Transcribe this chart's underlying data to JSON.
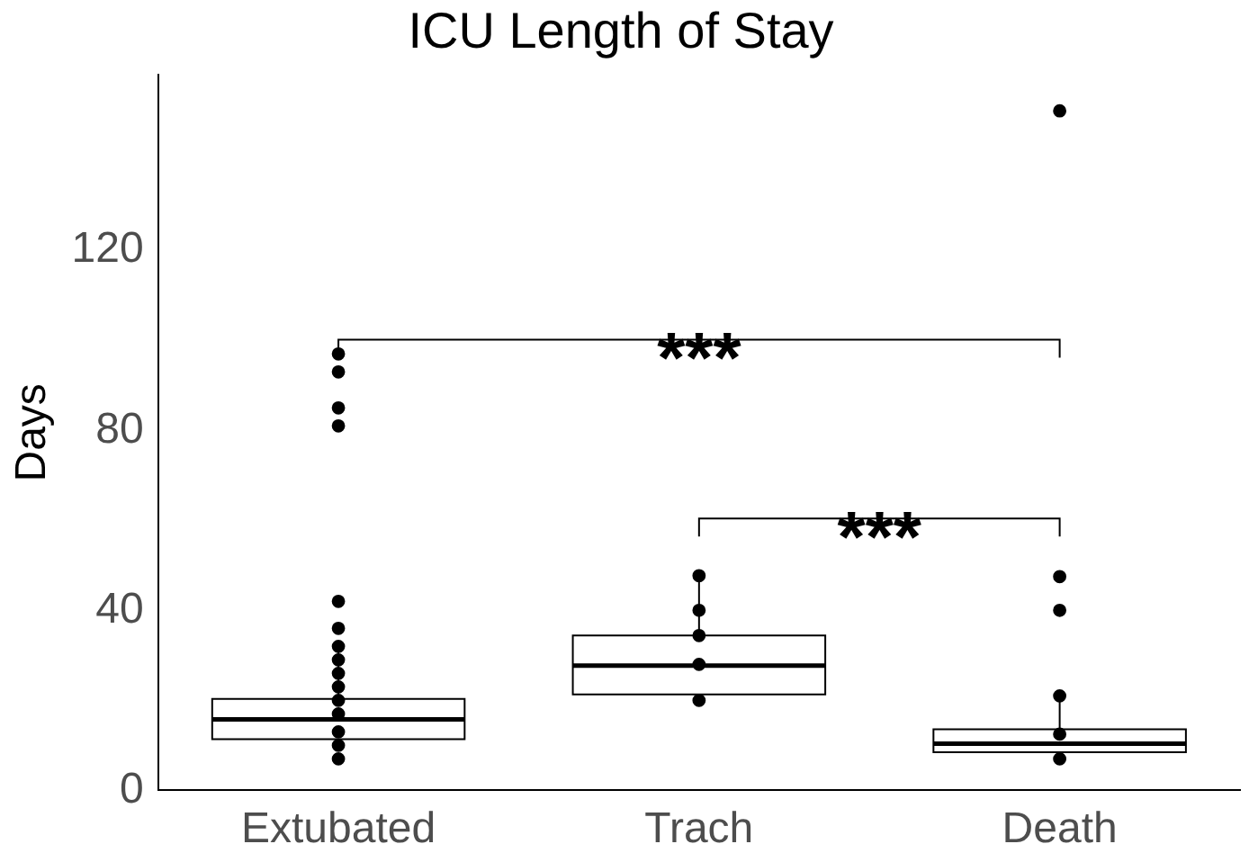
{
  "chart_data": {
    "type": "box",
    "title": "ICU Length of Stay",
    "ylabel": "Days",
    "categories": [
      "Extubated",
      "Trach",
      "Death"
    ],
    "boxes": [
      {
        "q1": 11.4,
        "median": 15.8,
        "q3": 20.3,
        "high": 32.5
      },
      {
        "q1": 21.3,
        "median": 27.7,
        "q3": 34.4,
        "high": 47.7
      },
      {
        "q1": 8.5,
        "median": 10.4,
        "q3": 13.6,
        "high": 21
      }
    ],
    "series": [
      {
        "type": "scatter",
        "color": "#000000",
        "x": [
          "Extubated",
          "Extubated",
          "Extubated",
          "Extubated",
          "Extubated",
          "Extubated",
          "Extubated",
          "Extubated",
          "Extubated",
          "Extubated",
          "Extubated",
          "Extubated",
          "Extubated",
          "Extubated",
          "Extubated",
          "Trach",
          "Trach",
          "Trach",
          "Trach",
          "Trach",
          "Death",
          "Death",
          "Death",
          "Death",
          "Death",
          "Death"
        ],
        "values": [
          7,
          10,
          13,
          17,
          20,
          23,
          26,
          29,
          32,
          36,
          42,
          81,
          85,
          93,
          97,
          20,
          28,
          34.4,
          40,
          47.7,
          7,
          12.5,
          21,
          40,
          47.5,
          151
        ]
      }
    ],
    "marker": "circle",
    "ylim": [
      0,
      159
    ],
    "yticks": [
      0,
      40,
      80,
      120
    ],
    "annotations": [
      "***",
      "***"
    ],
    "grid": false,
    "legend": false
  }
}
